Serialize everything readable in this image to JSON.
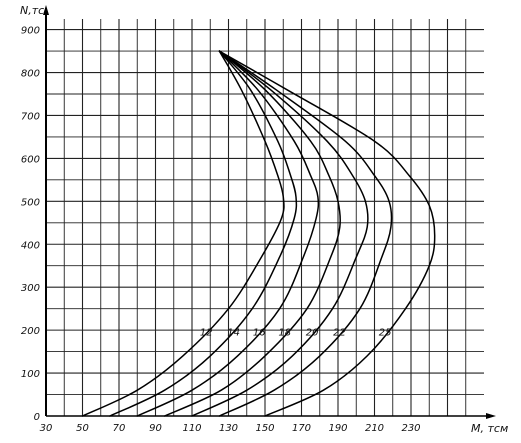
{
  "chart_data": {
    "type": "line",
    "title": "",
    "xlabel": "M, тсм",
    "ylabel": "N,тс",
    "xlim": [
      30,
      270
    ],
    "ylim": [
      0,
      920
    ],
    "x_ticks": [
      30,
      50,
      70,
      90,
      110,
      130,
      150,
      170,
      190,
      210,
      230
    ],
    "y_ticks": [
      0,
      100,
      200,
      300,
      400,
      500,
      600,
      700,
      800,
      900
    ],
    "grid": true,
    "grid_step_x": 10,
    "grid_step_y": 50,
    "series": [
      {
        "name": "12",
        "label_at": [
          122,
          180
        ],
        "x": [
          50,
          80,
          105,
          130,
          148,
          159,
          160,
          157,
          150,
          137,
          125
        ],
        "y": [
          0,
          60,
          140,
          250,
          370,
          460,
          510,
          560,
          640,
          760,
          850
        ]
      },
      {
        "name": "14",
        "label_at": [
          137,
          180
        ],
        "x": [
          65,
          95,
          120,
          143,
          158,
          166,
          167,
          164,
          157,
          142,
          125
        ],
        "y": [
          0,
          60,
          140,
          250,
          370,
          460,
          510,
          560,
          640,
          760,
          850
        ]
      },
      {
        "name": "16",
        "label_at": [
          151,
          180
        ],
        "x": [
          80,
          110,
          135,
          158,
          171,
          178,
          179,
          175,
          166,
          146,
          125
        ],
        "y": [
          0,
          60,
          140,
          250,
          370,
          460,
          510,
          560,
          640,
          760,
          850
        ]
      },
      {
        "name": "18",
        "label_at": [
          165,
          180
        ],
        "x": [
          95,
          126,
          150,
          173,
          186,
          191,
          190,
          185,
          175,
          150,
          125
        ],
        "y": [
          0,
          60,
          140,
          250,
          370,
          440,
          500,
          560,
          640,
          760,
          850
        ]
      },
      {
        "name": "20",
        "label_at": [
          180,
          180
        ],
        "x": [
          110,
          140,
          165,
          187,
          200,
          206,
          205,
          198,
          184,
          153,
          125
        ],
        "y": [
          0,
          60,
          140,
          250,
          370,
          440,
          500,
          560,
          640,
          760,
          850
        ]
      },
      {
        "name": "22",
        "label_at": [
          195,
          180
        ],
        "x": [
          125,
          155,
          180,
          202,
          214,
          219,
          218,
          210,
          194,
          156,
          125
        ],
        "y": [
          0,
          60,
          140,
          250,
          370,
          440,
          500,
          560,
          640,
          760,
          850
        ]
      },
      {
        "name": "25",
        "label_at": [
          220,
          180
        ],
        "x": [
          150,
          182,
          206,
          227,
          240,
          243,
          240,
          229,
          210,
          162,
          125
        ],
        "y": [
          0,
          60,
          140,
          250,
          350,
          420,
          490,
          560,
          640,
          760,
          850
        ]
      }
    ]
  }
}
